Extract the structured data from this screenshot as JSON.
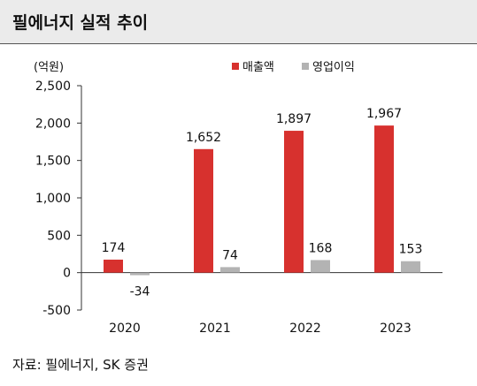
{
  "header": {
    "title": "필에너지 실적 추이"
  },
  "footer": {
    "source": "자료: 필에너지, SK 증권"
  },
  "colors": {
    "revenue": "#d7312e",
    "operating_profit": "#b3b3b3",
    "axis": "#333333",
    "text": "#111111"
  },
  "chart_data": {
    "type": "bar",
    "title": "필에너지 실적 추이",
    "unit_label": "(억원)",
    "categories": [
      "2020",
      "2021",
      "2022",
      "2023"
    ],
    "series": [
      {
        "name": "매출액",
        "values": [
          174,
          1652,
          1897,
          1967
        ],
        "labels": [
          "174",
          "1,652",
          "1,897",
          "1,967"
        ]
      },
      {
        "name": "영업이익",
        "values": [
          -34,
          74,
          168,
          153
        ],
        "labels": [
          "-34",
          "74",
          "168",
          "153"
        ]
      }
    ],
    "y_ticks": [
      -500,
      0,
      500,
      1000,
      1500,
      2000,
      2500
    ],
    "y_tick_labels": [
      "-500",
      "0",
      "500",
      "1,000",
      "1,500",
      "2,000",
      "2,500"
    ],
    "ylim": [
      -500,
      2500
    ],
    "legend_position": "top-right",
    "grid": false
  }
}
